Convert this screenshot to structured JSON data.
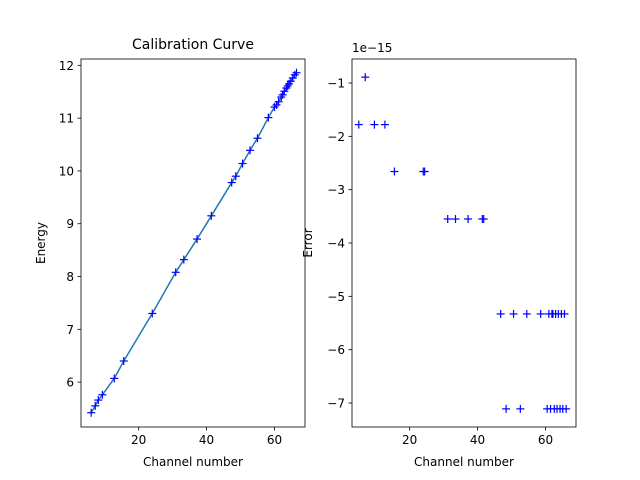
{
  "chart_data": [
    {
      "type": "line",
      "title": "Calibration Curve",
      "xlabel": "Channel number",
      "ylabel": "Energy",
      "xlim": [
        3.0,
        69.0
      ],
      "ylim": [
        5.15,
        12.12
      ],
      "xticks": [
        20,
        40,
        60
      ],
      "yticks": [
        6,
        7,
        8,
        9,
        10,
        11,
        12
      ],
      "grid": false,
      "marker": "+",
      "colors": {
        "markers": "#0000ff",
        "line": "#1f77b4"
      },
      "series": [
        {
          "x": [
            6.0,
            7.2,
            8.1,
            9.3,
            12.8,
            15.6,
            24.0,
            30.9,
            33.3,
            37.2,
            41.4,
            47.4,
            48.6,
            50.6,
            52.8,
            55.0,
            58.2,
            60.0,
            60.6,
            61.2,
            62.0,
            62.4,
            62.9,
            63.5,
            63.9,
            64.3,
            64.8,
            65.4,
            66.0,
            66.5
          ],
          "y": [
            5.42,
            5.55,
            5.66,
            5.76,
            6.07,
            6.4,
            7.3,
            8.08,
            8.32,
            8.71,
            9.15,
            9.78,
            9.9,
            10.14,
            10.39,
            10.62,
            11.01,
            11.21,
            11.25,
            11.31,
            11.4,
            11.44,
            11.51,
            11.57,
            11.61,
            11.65,
            11.7,
            11.76,
            11.82,
            11.86
          ]
        }
      ]
    },
    {
      "type": "scatter",
      "xlabel": "Channel number",
      "ylabel": "Error",
      "offset_text": "1e−15",
      "xlim": [
        3.0,
        69.0
      ],
      "ylim": [
        -7.45,
        -0.55
      ],
      "xticks": [
        20,
        40,
        60
      ],
      "yticks": [
        -1,
        -2,
        -3,
        -4,
        -5,
        -6,
        -7
      ],
      "grid": false,
      "marker": "+",
      "colors": {
        "markers": "#0000ff"
      },
      "series": [
        {
          "x": [
            5.0,
            6.9,
            9.6,
            12.7,
            15.5,
            24.0,
            24.4,
            31.2,
            33.5,
            37.2,
            41.4,
            41.8,
            46.8,
            48.4,
            50.6,
            52.6,
            54.5,
            58.6,
            60.5,
            61.0,
            61.5,
            61.9,
            62.2,
            62.6,
            63.0,
            63.4,
            63.8,
            64.3,
            64.7,
            65.1,
            65.6,
            66.1
          ],
          "y": [
            -1.78,
            -0.89,
            -1.78,
            -1.78,
            -2.66,
            -2.66,
            -2.66,
            -3.55,
            -3.55,
            -3.55,
            -3.55,
            -3.55,
            -5.33,
            -7.11,
            -5.33,
            -7.11,
            -5.33,
            -5.33,
            -7.11,
            -5.33,
            -7.11,
            -5.33,
            -5.33,
            -7.11,
            -5.33,
            -7.11,
            -5.33,
            -7.11,
            -5.33,
            -7.11,
            -5.33,
            -7.11
          ]
        }
      ]
    }
  ]
}
